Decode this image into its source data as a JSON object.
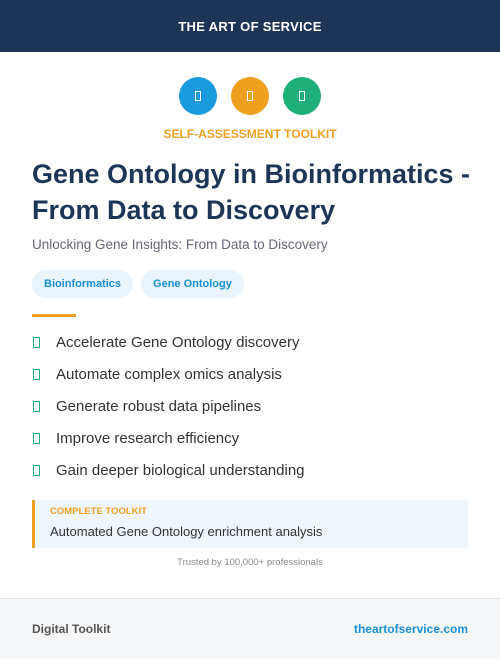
{
  "header": {
    "title": "THE ART OF SERVICE"
  },
  "badge": "SELF-ASSESSMENT TOOLKIT",
  "title": "Gene Ontology in Bioinformatics - From Data to Discovery",
  "subtitle": "Unlocking Gene Insights: From Data to Discovery",
  "tags": [
    "Bioinformatics",
    "Gene Ontology"
  ],
  "features": [
    "Accelerate Gene Ontology discovery",
    "Automate complex omics analysis",
    "Generate robust data pipelines",
    "Improve research efficiency",
    "Gain deeper biological understanding"
  ],
  "callout": {
    "label": "COMPLETE TOOLKIT",
    "text": "Automated Gene Ontology enrichment analysis"
  },
  "trust": "Trusted by 100,000+ professionals",
  "footer": {
    "left": "Digital Toolkit",
    "right": "theartofservice.com"
  }
}
